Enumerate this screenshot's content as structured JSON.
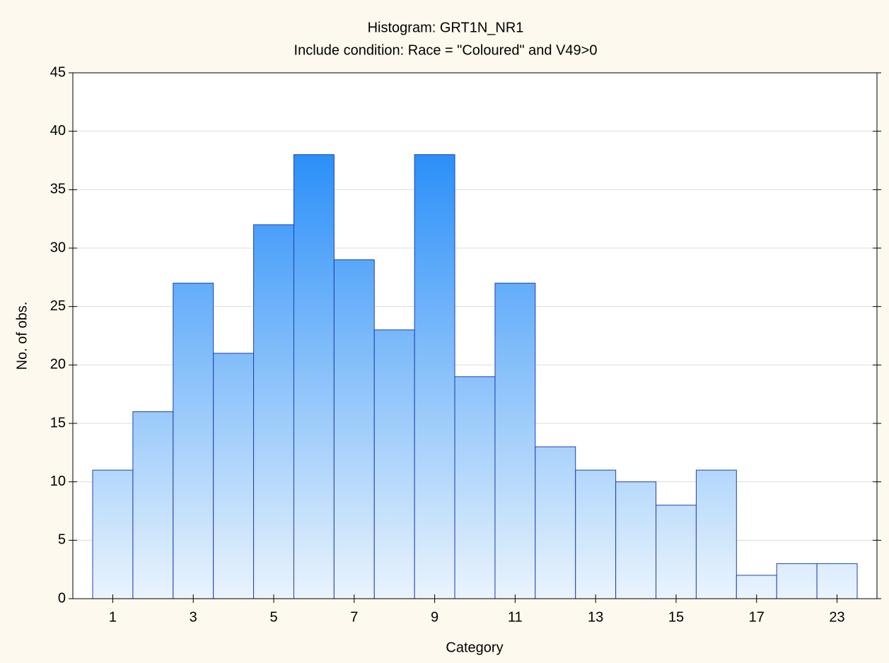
{
  "chart_data": {
    "type": "bar",
    "title": "Histogram: GRT1N_NR1",
    "subtitle": "Include condition: Race = \"Coloured\" and V49>0",
    "x_label": "Category",
    "y_label": "No. of obs.",
    "categories": [
      "1",
      null,
      "3",
      null,
      "5",
      null,
      "7",
      null,
      "9",
      null,
      "11",
      null,
      "13",
      null,
      "15",
      null,
      "17",
      null,
      "23"
    ],
    "values": [
      11,
      16,
      27,
      21,
      32,
      38,
      29,
      23,
      38,
      19,
      27,
      13,
      11,
      10,
      8,
      11,
      2,
      3,
      3
    ],
    "color": "#2a8ff8",
    "ylim": [
      0,
      45
    ],
    "yticks": [
      0,
      5,
      10,
      15,
      20,
      25,
      30,
      35,
      40,
      45
    ],
    "grid": true
  }
}
